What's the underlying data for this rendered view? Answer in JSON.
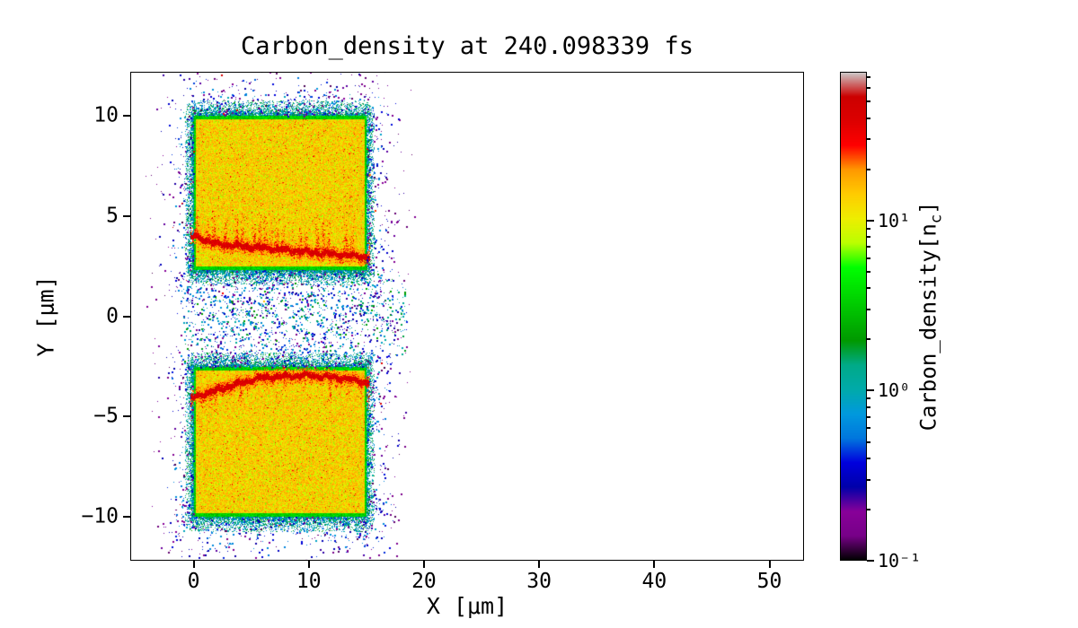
{
  "figure": {
    "background": "#ffffff",
    "frame_color": "#000000"
  },
  "chart_data": {
    "type": "heatmap",
    "title": "Carbon_density at 240.098339 fs",
    "time_fs": 240.098339,
    "xlabel": "X [μm]",
    "ylabel": "Y [μm]",
    "xlim": [
      -5.5,
      53.0
    ],
    "ylim": [
      -12.2,
      12.2
    ],
    "x_ticks": [
      0,
      10,
      20,
      30,
      40,
      50
    ],
    "y_ticks": [
      -10,
      -5,
      0,
      5,
      10
    ],
    "grid": false,
    "colorbar": {
      "label": "Carbon_density[n_c]",
      "label_parts": [
        "Carbon_density[n",
        "c",
        "]"
      ],
      "scale": "log",
      "vmin": 0.1,
      "vmax": 75,
      "tick_values": [
        10,
        1,
        0.1
      ],
      "tick_labels": [
        "10¹",
        "10⁰",
        "10⁻¹"
      ],
      "colormap": "nipy_spectral",
      "stops": [
        {
          "t": 0.0,
          "c": "#000000"
        },
        {
          "t": 0.05,
          "c": "#770088"
        },
        {
          "t": 0.1,
          "c": "#880099"
        },
        {
          "t": 0.15,
          "c": "#0000AA"
        },
        {
          "t": 0.2,
          "c": "#0000DD"
        },
        {
          "t": 0.25,
          "c": "#0077DD"
        },
        {
          "t": 0.3,
          "c": "#0099DD"
        },
        {
          "t": 0.35,
          "c": "#00AAAA"
        },
        {
          "t": 0.4,
          "c": "#00AA88"
        },
        {
          "t": 0.45,
          "c": "#009900"
        },
        {
          "t": 0.5,
          "c": "#00BB00"
        },
        {
          "t": 0.55,
          "c": "#00DD00"
        },
        {
          "t": 0.6,
          "c": "#00FF00"
        },
        {
          "t": 0.65,
          "c": "#BBFF00"
        },
        {
          "t": 0.7,
          "c": "#EEEE00"
        },
        {
          "t": 0.75,
          "c": "#FFCC00"
        },
        {
          "t": 0.8,
          "c": "#FF9900"
        },
        {
          "t": 0.85,
          "c": "#FF0000"
        },
        {
          "t": 0.9,
          "c": "#DD0000"
        },
        {
          "t": 0.95,
          "c": "#CC0000"
        },
        {
          "t": 1.0,
          "c": "#CCCCCC"
        }
      ]
    },
    "features": {
      "blocks": [
        {
          "x0": 0,
          "x1": 15,
          "y0": 2.3,
          "y1": 10,
          "density": 12,
          "edge_density": 3,
          "edge_width": 0.18
        },
        {
          "x0": 0,
          "x1": 15,
          "y0": -10,
          "y1": -2.55,
          "density": 12,
          "edge_density": 3,
          "edge_width": 0.18
        }
      ],
      "filaments": [
        {
          "points": [
            [
              0,
              4.0
            ],
            [
              2,
              3.6
            ],
            [
              5,
              3.45
            ],
            [
              9,
              3.25
            ],
            [
              12,
              3.1
            ],
            [
              15,
              2.95
            ]
          ],
          "density": 40,
          "half_width": 0.16,
          "streak_dir": 1,
          "streak_spacing": 0.5,
          "streak_max_len": 1.7
        },
        {
          "points": [
            [
              0,
              -4.05
            ],
            [
              3,
              -3.5
            ],
            [
              6,
              -3.05
            ],
            [
              10,
              -2.95
            ],
            [
              13,
              -3.1
            ],
            [
              15,
              -3.3
            ]
          ],
          "density": 40,
          "half_width": 0.16,
          "streak_dir": -1,
          "streak_spacing": 0.55,
          "streak_max_len": 1.3
        }
      ],
      "halo": {
        "dots_per_block": 15000,
        "spread_x": 4.2,
        "spread_y": 2.3,
        "vmin": 0.12,
        "vmax": 1.8
      },
      "gap_scatter": {
        "x0": -1.0,
        "x1": 18.5,
        "y0": -2.5,
        "y1": 2.2,
        "count": 2600
      }
    }
  }
}
